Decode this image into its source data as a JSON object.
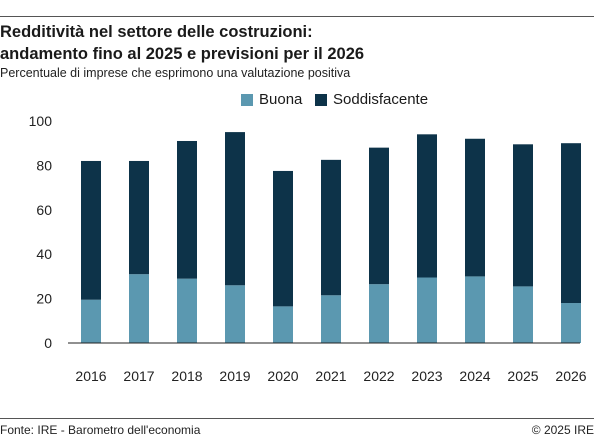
{
  "title_lines": [
    "Redditività nel settore delle costruzioni:",
    "andamento fino al 2025 e previsioni per il 2026"
  ],
  "subtitle": "Percentuale di imprese che esprimono una valutazione positiva",
  "footer": {
    "source": "Fonte: IRE - Barometro dell'economia",
    "copyright": "© 2025 IRE"
  },
  "colors": {
    "buona": "#5b98b0",
    "soddisfacente": "#0d3349",
    "axis": "#222222"
  },
  "chart_data": {
    "type": "bar",
    "stacked": true,
    "categories": [
      "2016",
      "2017",
      "2018",
      "2019",
      "2020",
      "2021",
      "2022",
      "2023",
      "2024",
      "2025",
      "2026"
    ],
    "series": [
      {
        "name": "Buona",
        "values": [
          19.5,
          31,
          29,
          26,
          16.5,
          21.5,
          26.5,
          29.5,
          30,
          25.5,
          18
        ]
      },
      {
        "name": "Soddisfacente",
        "values": [
          62.5,
          51,
          62,
          69,
          61,
          61,
          61.5,
          64.5,
          62,
          64,
          72
        ]
      }
    ],
    "ylim": [
      0,
      100
    ],
    "yticks": [
      0,
      20,
      40,
      60,
      80,
      100
    ],
    "legend_position": "top",
    "grid": false,
    "xlabel": "",
    "ylabel": ""
  }
}
